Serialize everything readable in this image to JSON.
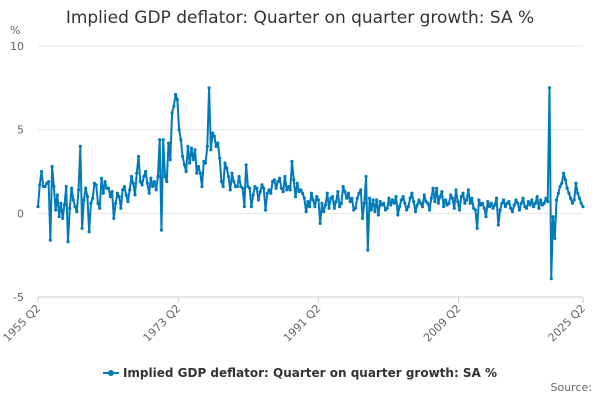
{
  "chart_data": {
    "type": "line",
    "title": "Implied GDP deflator: Quarter on quarter growth: SA %",
    "ylabel": "%",
    "xlabel": "",
    "ylim": [
      -5,
      10
    ],
    "yticks": [
      -5,
      0,
      5,
      10
    ],
    "xticks": [
      "1955 Q2",
      "1973 Q2",
      "1991 Q2",
      "2009 Q2",
      "2025 Q2"
    ],
    "grid": true,
    "legend": "bottom-center",
    "color": "#007ab8",
    "series": [
      {
        "name": "Implied GDP deflator: Quarter on quarter growth: SA %",
        "start_year": 1955,
        "start_quarter": 2,
        "values": [
          0.4,
          1.7,
          2.5,
          1.6,
          1.6,
          1.8,
          1.9,
          -1.6,
          2.8,
          1.6,
          0.2,
          1.1,
          -0.2,
          0.6,
          -0.3,
          0.5,
          1.6,
          -1.7,
          0.3,
          1.5,
          0.8,
          0.4,
          0.1,
          1.4,
          4.0,
          -0.9,
          0.8,
          1.5,
          1.0,
          -1.1,
          0.6,
          0.9,
          1.8,
          1.7,
          0.6,
          0.3,
          2.1,
          1.2,
          1.9,
          1.5,
          1.5,
          1.0,
          1.3,
          -0.3,
          0.6,
          1.2,
          1.0,
          0.3,
          1.4,
          1.6,
          1.1,
          0.7,
          1.4,
          2.2,
          1.8,
          1.1,
          2.4,
          3.4,
          1.9,
          1.7,
          2.2,
          2.5,
          1.8,
          1.2,
          2.1,
          1.6,
          1.9,
          1.4,
          2.2,
          4.4,
          -1.0,
          4.4,
          2.2,
          1.9,
          4.2,
          3.2,
          6.0,
          6.4,
          7.1,
          6.8,
          5.0,
          4.4,
          3.4,
          2.9,
          2.5,
          4.0,
          3.0,
          3.9,
          3.2,
          3.8,
          2.4,
          2.8,
          2.4,
          1.6,
          3.1,
          3.0,
          4.0,
          7.5,
          3.8,
          4.8,
          4.6,
          4.0,
          4.2,
          3.3,
          1.9,
          1.6,
          3.0,
          2.7,
          2.2,
          1.4,
          2.4,
          1.9,
          1.6,
          1.6,
          2.2,
          1.6,
          1.5,
          0.4,
          2.9,
          1.6,
          1.5,
          0.4,
          1.1,
          1.6,
          1.5,
          0.8,
          1.3,
          1.7,
          1.5,
          0.2,
          1.2,
          1.4,
          1.2,
          1.9,
          2.0,
          1.5,
          1.9,
          2.1,
          1.5,
          1.3,
          2.2,
          1.4,
          1.6,
          1.4,
          3.1,
          2.0,
          1.0,
          1.8,
          1.3,
          1.4,
          1.2,
          0.9,
          0.1,
          0.7,
          0.4,
          1.2,
          0.8,
          0.4,
          1.0,
          0.8,
          -0.6,
          0.6,
          0.1,
          0.5,
          1.2,
          0.3,
          0.9,
          1.0,
          0.3,
          0.7,
          1.3,
          0.4,
          0.6,
          1.6,
          1.3,
          0.9,
          1.2,
          0.7,
          0.9,
          0.2,
          0.3,
          0.9,
          1.2,
          1.4,
          -0.3,
          0.6,
          2.2,
          -2.2,
          0.9,
          0.2,
          0.8,
          0.1,
          0.8,
          -0.1,
          0.7,
          0.5,
          0.6,
          0.2,
          0.3,
          0.9,
          0.5,
          0.8,
          0.6,
          1.0,
          -0.1,
          0.4,
          0.8,
          1.0,
          0.6,
          0.2,
          0.4,
          0.9,
          1.2,
          0.7,
          0.1,
          0.5,
          0.8,
          0.6,
          0.4,
          1.1,
          0.7,
          0.6,
          0.2,
          0.9,
          1.5,
          0.7,
          1.5,
          0.6,
          1.0,
          1.3,
          0.4,
          0.8,
          0.5,
          0.6,
          1.1,
          0.9,
          0.3,
          1.4,
          0.7,
          0.2,
          1.0,
          1.2,
          0.6,
          0.8,
          1.4,
          0.6,
          0.9,
          0.3,
          0.2,
          -0.9,
          0.8,
          0.5,
          0.6,
          0.3,
          -0.2,
          0.7,
          0.4,
          0.6,
          0.3,
          0.5,
          0.9,
          -0.7,
          0.2,
          0.6,
          0.8,
          0.4,
          0.6,
          0.7,
          0.3,
          0.1,
          0.5,
          0.8,
          0.6,
          0.2,
          0.6,
          0.9,
          0.4,
          0.3,
          0.7,
          0.5,
          0.8,
          0.4,
          0.6,
          1.0,
          0.3,
          0.8,
          0.5,
          0.6,
          0.9,
          0.7,
          7.5,
          -3.9,
          -0.2,
          -1.5,
          0.8,
          1.2,
          1.6,
          1.8,
          2.4,
          2.0,
          1.5,
          1.2,
          0.9,
          0.6,
          0.8,
          1.8,
          1.2,
          0.9,
          0.6,
          0.4
        ]
      }
    ]
  },
  "credits": "Source:"
}
